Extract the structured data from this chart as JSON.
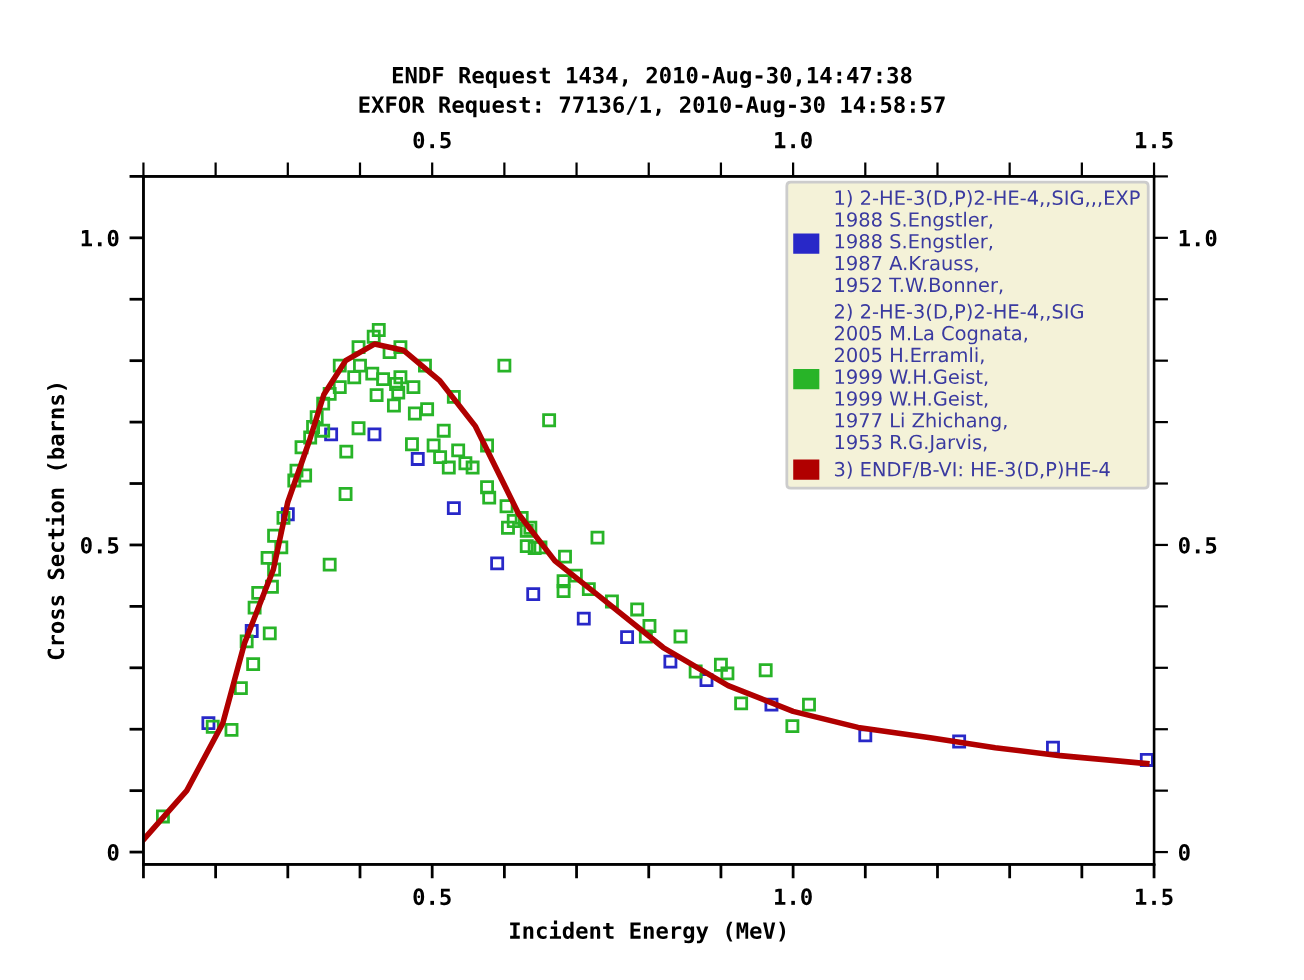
{
  "chart_data": {
    "type": "scatter",
    "title": "ENDF Request 1434, 2010-Aug-30,14:47:38",
    "subtitle": "EXFOR Request: 77136/1, 2010-Aug-30 14:58:57",
    "xlabel": "Incident Energy (MeV)",
    "ylabel": "Cross Section (barns)",
    "xlim": [
      0.1,
      1.5
    ],
    "ylim": [
      -0.02,
      1.1
    ],
    "x2lim": [
      0.1,
      1.5
    ],
    "y2lim": [
      -0.02,
      1.1
    ],
    "xticks": [
      {
        "value": 0.1,
        "label": null
      },
      {
        "value": 0.2,
        "label": null
      },
      {
        "value": 0.3,
        "label": null
      },
      {
        "value": 0.4,
        "label": null
      },
      0.5,
      {
        "value": 0.6,
        "label": null
      },
      {
        "value": 0.7,
        "label": null
      },
      {
        "value": 0.8,
        "label": null
      },
      {
        "value": 0.9,
        "label": null
      },
      {
        "value": 1,
        "label": "1.0"
      },
      {
        "value": 1.1,
        "label": null
      },
      {
        "value": 1.2,
        "label": null
      },
      {
        "value": 1.3,
        "label": null
      },
      {
        "value": 1.4,
        "label": null
      },
      1.5
    ],
    "x2ticks": [
      {
        "value": 0.1,
        "label": null
      },
      {
        "value": 0.2,
        "label": null
      },
      {
        "value": 0.3,
        "label": null
      },
      {
        "value": 0.4,
        "label": null
      },
      0.5,
      {
        "value": 0.6,
        "label": null
      },
      {
        "value": 0.7,
        "label": null
      },
      {
        "value": 0.8,
        "label": null
      },
      {
        "value": 0.9,
        "label": null
      },
      {
        "value": 1,
        "label": "1.0"
      },
      {
        "value": 1.1,
        "label": null
      },
      {
        "value": 1.2,
        "label": null
      },
      {
        "value": 1.3,
        "label": null
      },
      {
        "value": 1.4,
        "label": null
      },
      1.5
    ],
    "yticks": [
      0,
      {
        "value": 0.1,
        "label": null
      },
      {
        "value": 0.2,
        "label": null
      },
      {
        "value": 0.3,
        "label": null
      },
      {
        "value": 0.4,
        "label": null
      },
      0.5,
      {
        "value": 0.6,
        "label": null
      },
      {
        "value": 0.7,
        "label": null
      },
      {
        "value": 0.8,
        "label": null
      },
      {
        "value": 0.9,
        "label": null
      },
      {
        "value": 1,
        "label": "1.0"
      },
      {
        "value": 1.1,
        "label": null
      }
    ],
    "y2ticks": [
      0,
      {
        "value": 0.1,
        "label": null
      },
      {
        "value": 0.2,
        "label": null
      },
      {
        "value": 0.3,
        "label": null
      },
      {
        "value": 0.4,
        "label": null
      },
      0.5,
      {
        "value": 0.6,
        "label": null
      },
      {
        "value": 0.7,
        "label": null
      },
      {
        "value": 0.8,
        "label": null
      },
      {
        "value": 0.9,
        "label": null
      },
      {
        "value": 1,
        "label": "1.0"
      },
      {
        "value": 1.1,
        "label": null
      }
    ],
    "grid": false,
    "legend": "top right",
    "series": [
      {
        "name": "1) 2-HE-3(D,P)2-HE-4,,SIG,,,EXP\n1988 S.Engstler,\n1988 S.Engstler,\n1987 A.Krauss,\n1952 T.W.Bonner,",
        "color": "#2828c8",
        "marker": "square",
        "x": [
          0.19,
          0.25,
          0.3,
          0.36,
          0.42,
          0.48,
          0.53,
          0.59,
          0.64,
          0.71,
          0.77,
          0.83,
          0.88,
          0.97,
          1.1,
          1.23,
          1.36,
          1.49
        ],
        "values": [
          0.21,
          0.36,
          0.55,
          0.68,
          0.68,
          0.64,
          0.56,
          0.47,
          0.42,
          0.38,
          0.35,
          0.31,
          0.28,
          0.24,
          0.19,
          0.18,
          0.17,
          0.15
        ]
      },
      {
        "name": "2) 2-HE-3(D,P)2-HE-4,,SIG\n2005 M.La Cognata,\n2005 H.Erramli,\n1999 W.H.Geist,\n1999 W.H.Geist,\n1977 Li Zhichang,\n1953 R.G.Jarvis,",
        "color": "#28b428",
        "marker": "square",
        "x": [
          0.127,
          0.196,
          0.222,
          0.235,
          0.252,
          0.243,
          0.254,
          0.259,
          0.275,
          0.278,
          0.281,
          0.272,
          0.291,
          0.281,
          0.294,
          0.309,
          0.312,
          0.324,
          0.319,
          0.331,
          0.335,
          0.34,
          0.349,
          0.349,
          0.358,
          0.372,
          0.372,
          0.358,
          0.38,
          0.381,
          0.398,
          0.392,
          0.398,
          0.4,
          0.419,
          0.426,
          0.417,
          0.423,
          0.432,
          0.441,
          0.456,
          0.45,
          0.453,
          0.447,
          0.456,
          0.474,
          0.476,
          0.472,
          0.49,
          0.493,
          0.502,
          0.511,
          0.516,
          0.53,
          0.536,
          0.523,
          0.546,
          0.556,
          0.576,
          0.576,
          0.579,
          0.6,
          0.603,
          0.605,
          0.624,
          0.662,
          0.613,
          0.631,
          0.631,
          0.642,
          0.729,
          0.65,
          0.636,
          0.684,
          0.682,
          0.682,
          0.699,
          0.717,
          0.749,
          0.784,
          0.801,
          0.796,
          0.844,
          0.865,
          0.9,
          0.909,
          0.962,
          0.928,
          0.999,
          1.022
        ],
        "values": [
          0.058,
          0.204,
          0.199,
          0.267,
          0.306,
          0.343,
          0.398,
          0.422,
          0.356,
          0.432,
          0.46,
          0.479,
          0.496,
          0.515,
          0.544,
          0.605,
          0.621,
          0.613,
          0.659,
          0.675,
          0.692,
          0.708,
          0.686,
          0.73,
          0.746,
          0.757,
          0.792,
          0.468,
          0.583,
          0.652,
          0.69,
          0.773,
          0.822,
          0.792,
          0.839,
          0.85,
          0.779,
          0.744,
          0.77,
          0.814,
          0.822,
          0.762,
          0.748,
          0.727,
          0.773,
          0.757,
          0.714,
          0.664,
          0.792,
          0.721,
          0.662,
          0.643,
          0.686,
          0.741,
          0.654,
          0.626,
          0.633,
          0.626,
          0.662,
          0.594,
          0.577,
          0.792,
          0.563,
          0.528,
          0.544,
          0.703,
          0.539,
          0.523,
          0.498,
          0.495,
          0.512,
          0.496,
          0.528,
          0.481,
          0.441,
          0.425,
          0.45,
          0.428,
          0.408,
          0.395,
          0.368,
          0.351,
          0.351,
          0.294,
          0.305,
          0.291,
          0.296,
          0.242,
          0.205,
          0.24
        ]
      },
      {
        "name": "3) ENDF/B-VI: HE-3(D,P)HE-4",
        "color": "#b00000",
        "type": "line",
        "line_style": "solid",
        "marker": "none",
        "x": [
          0.1,
          0.16,
          0.21,
          0.24,
          0.28,
          0.3,
          0.33,
          0.35,
          0.38,
          0.42,
          0.46,
          0.51,
          0.56,
          0.62,
          0.67,
          0.73,
          0.82,
          0.91,
          1.0,
          1.09,
          1.19,
          1.28,
          1.37,
          1.49
        ],
        "values": [
          0.02,
          0.1,
          0.21,
          0.34,
          0.46,
          0.57,
          0.67,
          0.745,
          0.8,
          0.827,
          0.817,
          0.768,
          0.693,
          0.55,
          0.474,
          0.418,
          0.333,
          0.271,
          0.229,
          0.203,
          0.186,
          0.17,
          0.157,
          0.144
        ]
      }
    ]
  }
}
